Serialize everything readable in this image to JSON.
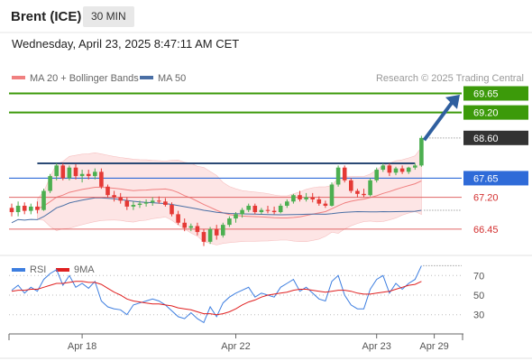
{
  "header": {
    "instrument": "Brent (ICE)",
    "timeframe": "30 MIN",
    "timestamp": "Wednesday, April 23, 2025 8:47:11 AM CET"
  },
  "colors": {
    "up_candle": "#4caf50",
    "down_candle": "#e53935",
    "ma20": "#f08080",
    "band_fill": "#fde0e0",
    "ma50": "#4a6fa5",
    "resistance": "#3c9a0a",
    "pivot": "#2f6bd8",
    "support": "#e06666",
    "arrow": "#2f5f9f",
    "rsi": "#3d7ee0",
    "rsi_ma": "#e02020",
    "current_price": "#333333"
  },
  "chart_data": [
    {
      "type": "candlestick",
      "title": "Brent (ICE)",
      "timeframe": "30 MIN",
      "legend": [
        {
          "label": "MA 20 + Bollinger Bands",
          "color": "#f08080"
        },
        {
          "label": "MA 50",
          "color": "#4a6fa5"
        }
      ],
      "watermark": "Research © 2025 Trading Central",
      "x_ticks": [
        {
          "label": "Apr 18",
          "index": 11
        },
        {
          "label": "Apr 22",
          "index": 35
        },
        {
          "label": "Apr 23",
          "index": 57
        },
        {
          "label": "Apr 29",
          "index": 66
        }
      ],
      "y_range": [
        65.85,
        70.15
      ],
      "levels": [
        {
          "value": 69.65,
          "label": "69.65",
          "kind": "resistance"
        },
        {
          "value": 69.2,
          "label": "69.20",
          "kind": "resistance"
        },
        {
          "value": 68.6,
          "label": "68.60",
          "kind": "current"
        },
        {
          "value": 67.65,
          "label": "67.65",
          "kind": "pivot"
        },
        {
          "value": 67.2,
          "label": "67.20",
          "kind": "support"
        },
        {
          "value": 66.45,
          "label": "66.45",
          "kind": "support"
        }
      ],
      "horizontal_resistance": 68.0,
      "candles": [
        {
          "o": 66.95,
          "h": 67.05,
          "l": 66.75,
          "c": 66.85
        },
        {
          "o": 66.85,
          "h": 67.1,
          "l": 66.75,
          "c": 67.0
        },
        {
          "o": 67.0,
          "h": 67.08,
          "l": 66.8,
          "c": 66.88
        },
        {
          "o": 66.88,
          "h": 67.05,
          "l": 66.8,
          "c": 66.98
        },
        {
          "o": 66.98,
          "h": 67.1,
          "l": 66.82,
          "c": 66.9
        },
        {
          "o": 66.9,
          "h": 67.4,
          "l": 66.88,
          "c": 67.35
        },
        {
          "o": 67.35,
          "h": 67.75,
          "l": 67.3,
          "c": 67.7
        },
        {
          "o": 67.7,
          "h": 68.0,
          "l": 67.6,
          "c": 67.95
        },
        {
          "o": 67.95,
          "h": 68.0,
          "l": 67.6,
          "c": 67.65
        },
        {
          "o": 67.65,
          "h": 67.95,
          "l": 67.6,
          "c": 67.9
        },
        {
          "o": 67.9,
          "h": 67.98,
          "l": 67.62,
          "c": 67.7
        },
        {
          "o": 67.7,
          "h": 67.85,
          "l": 67.55,
          "c": 67.75
        },
        {
          "o": 67.75,
          "h": 67.85,
          "l": 67.62,
          "c": 67.7
        },
        {
          "o": 67.7,
          "h": 67.88,
          "l": 67.62,
          "c": 67.8
        },
        {
          "o": 67.8,
          "h": 67.88,
          "l": 67.4,
          "c": 67.45
        },
        {
          "o": 67.45,
          "h": 67.5,
          "l": 67.2,
          "c": 67.25
        },
        {
          "o": 67.25,
          "h": 67.35,
          "l": 67.1,
          "c": 67.2
        },
        {
          "o": 67.2,
          "h": 67.3,
          "l": 67.05,
          "c": 67.12
        },
        {
          "o": 67.12,
          "h": 67.2,
          "l": 66.9,
          "c": 66.98
        },
        {
          "o": 66.98,
          "h": 67.1,
          "l": 66.9,
          "c": 67.02
        },
        {
          "o": 67.02,
          "h": 67.12,
          "l": 66.95,
          "c": 67.05
        },
        {
          "o": 67.05,
          "h": 67.15,
          "l": 66.98,
          "c": 67.08
        },
        {
          "o": 67.08,
          "h": 67.2,
          "l": 67.0,
          "c": 67.12
        },
        {
          "o": 67.12,
          "h": 67.22,
          "l": 67.05,
          "c": 67.1
        },
        {
          "o": 67.1,
          "h": 67.18,
          "l": 66.98,
          "c": 67.02
        },
        {
          "o": 67.02,
          "h": 67.08,
          "l": 66.75,
          "c": 66.8
        },
        {
          "o": 66.8,
          "h": 66.88,
          "l": 66.55,
          "c": 66.6
        },
        {
          "o": 66.6,
          "h": 66.7,
          "l": 66.4,
          "c": 66.48
        },
        {
          "o": 66.48,
          "h": 66.58,
          "l": 66.4,
          "c": 66.52
        },
        {
          "o": 66.52,
          "h": 66.6,
          "l": 66.3,
          "c": 66.38
        },
        {
          "o": 66.38,
          "h": 66.45,
          "l": 66.05,
          "c": 66.15
        },
        {
          "o": 66.15,
          "h": 66.5,
          "l": 66.1,
          "c": 66.45
        },
        {
          "o": 66.45,
          "h": 66.55,
          "l": 66.2,
          "c": 66.3
        },
        {
          "o": 66.3,
          "h": 66.6,
          "l": 66.25,
          "c": 66.55
        },
        {
          "o": 66.55,
          "h": 66.75,
          "l": 66.5,
          "c": 66.7
        },
        {
          "o": 66.7,
          "h": 66.85,
          "l": 66.6,
          "c": 66.8
        },
        {
          "o": 66.8,
          "h": 66.95,
          "l": 66.72,
          "c": 66.9
        },
        {
          "o": 66.9,
          "h": 67.05,
          "l": 66.85,
          "c": 67.0
        },
        {
          "o": 67.0,
          "h": 67.05,
          "l": 66.8,
          "c": 66.85
        },
        {
          "o": 66.85,
          "h": 66.95,
          "l": 66.8,
          "c": 66.9
        },
        {
          "o": 66.9,
          "h": 67.0,
          "l": 66.82,
          "c": 66.88
        },
        {
          "o": 66.88,
          "h": 66.98,
          "l": 66.8,
          "c": 66.85
        },
        {
          "o": 66.85,
          "h": 67.05,
          "l": 66.82,
          "c": 67.0
        },
        {
          "o": 67.0,
          "h": 67.15,
          "l": 66.95,
          "c": 67.1
        },
        {
          "o": 67.1,
          "h": 67.28,
          "l": 67.05,
          "c": 67.25
        },
        {
          "o": 67.25,
          "h": 67.35,
          "l": 67.1,
          "c": 67.15
        },
        {
          "o": 67.15,
          "h": 67.3,
          "l": 67.1,
          "c": 67.2
        },
        {
          "o": 67.2,
          "h": 67.3,
          "l": 67.08,
          "c": 67.15
        },
        {
          "o": 67.15,
          "h": 67.22,
          "l": 67.0,
          "c": 67.05
        },
        {
          "o": 67.05,
          "h": 67.12,
          "l": 66.95,
          "c": 67.0
        },
        {
          "o": 67.0,
          "h": 67.55,
          "l": 66.98,
          "c": 67.5
        },
        {
          "o": 67.5,
          "h": 67.95,
          "l": 67.45,
          "c": 67.9
        },
        {
          "o": 67.9,
          "h": 67.95,
          "l": 67.55,
          "c": 67.6
        },
        {
          "o": 67.6,
          "h": 67.65,
          "l": 67.3,
          "c": 67.35
        },
        {
          "o": 67.35,
          "h": 67.4,
          "l": 67.2,
          "c": 67.28
        },
        {
          "o": 67.28,
          "h": 67.4,
          "l": 67.2,
          "c": 67.25
        },
        {
          "o": 67.25,
          "h": 67.65,
          "l": 67.22,
          "c": 67.6
        },
        {
          "o": 67.6,
          "h": 67.9,
          "l": 67.55,
          "c": 67.85
        },
        {
          "o": 67.85,
          "h": 68.0,
          "l": 67.8,
          "c": 67.95
        },
        {
          "o": 67.95,
          "h": 68.0,
          "l": 67.7,
          "c": 67.78
        },
        {
          "o": 67.78,
          "h": 67.92,
          "l": 67.72,
          "c": 67.88
        },
        {
          "o": 67.88,
          "h": 67.95,
          "l": 67.75,
          "c": 67.8
        },
        {
          "o": 67.8,
          "h": 67.92,
          "l": 67.75,
          "c": 67.9
        },
        {
          "o": 67.9,
          "h": 68.0,
          "l": 67.85,
          "c": 67.95
        },
        {
          "o": 67.95,
          "h": 68.65,
          "l": 67.92,
          "c": 68.6
        }
      ]
    },
    {
      "type": "line",
      "title": "RSI",
      "legend": [
        {
          "label": "RSI",
          "color": "#3d7ee0"
        },
        {
          "label": "9MA",
          "color": "#e02020"
        }
      ],
      "y_range": [
        15,
        85
      ],
      "y_ticks": [
        70,
        50,
        30
      ],
      "series": [
        {
          "name": "RSI",
          "values": [
            55,
            60,
            52,
            58,
            54,
            66,
            72,
            76,
            60,
            70,
            58,
            62,
            57,
            64,
            44,
            38,
            36,
            35,
            30,
            40,
            42,
            44,
            46,
            44,
            40,
            34,
            28,
            26,
            32,
            26,
            22,
            38,
            28,
            42,
            48,
            52,
            55,
            58,
            48,
            52,
            50,
            48,
            58,
            62,
            66,
            54,
            58,
            52,
            46,
            44,
            64,
            70,
            50,
            40,
            36,
            36,
            56,
            66,
            70,
            52,
            62,
            56,
            62,
            66,
            80
          ]
        },
        {
          "name": "9MA",
          "values": [
            54,
            55,
            55,
            56,
            56,
            58,
            60,
            62,
            62,
            63,
            64,
            64,
            63,
            63,
            61,
            57,
            53,
            50,
            46,
            44,
            43,
            42,
            41,
            41,
            40,
            39,
            37,
            36,
            35,
            33,
            31,
            31,
            30,
            31,
            33,
            36,
            40,
            43,
            45,
            48,
            50,
            51,
            52,
            53,
            55,
            56,
            56,
            55,
            54,
            53,
            54,
            55,
            55,
            54,
            52,
            51,
            51,
            52,
            53,
            54,
            56,
            58,
            60,
            61,
            64
          ]
        }
      ]
    }
  ]
}
